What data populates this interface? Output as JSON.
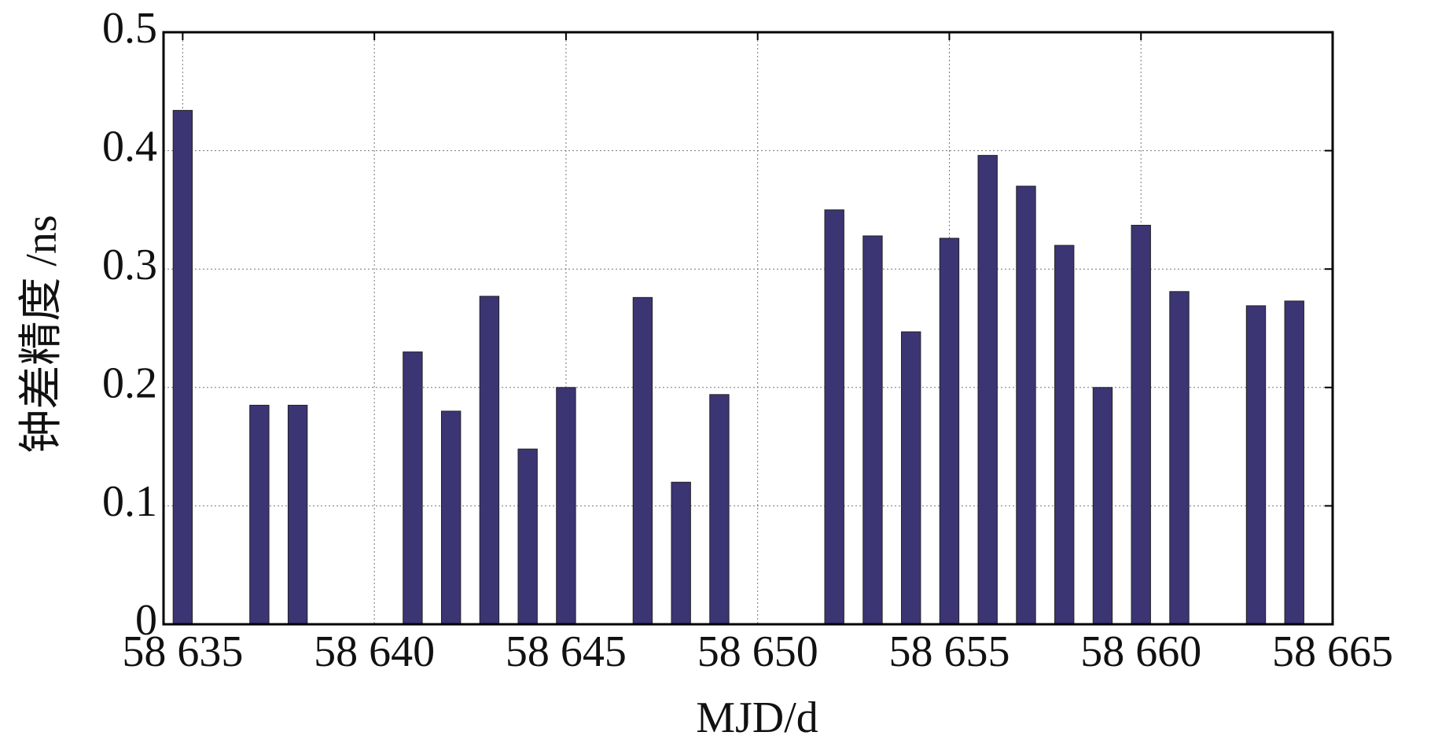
{
  "chart_data": {
    "type": "bar",
    "x_label": "MJD/d",
    "y_label": "钟差精度 /ns",
    "x": [
      58635,
      58637,
      58638,
      58641,
      58642,
      58643,
      58644,
      58645,
      58647,
      58648,
      58649,
      58652,
      58653,
      58654,
      58655,
      58656,
      58657,
      58658,
      58659,
      58660,
      58661,
      58663,
      58664
    ],
    "values": [
      0.434,
      0.185,
      0.185,
      0.23,
      0.18,
      0.277,
      0.148,
      0.2,
      0.276,
      0.12,
      0.194,
      0.35,
      0.328,
      0.247,
      0.326,
      0.396,
      0.37,
      0.32,
      0.2,
      0.337,
      0.281,
      0.269,
      0.273
    ],
    "color": "#3b3574",
    "xlim": [
      58634.5,
      58665
    ],
    "ylim": [
      0,
      0.5
    ],
    "xticks": [
      {
        "value": 58635,
        "label": "58 635"
      },
      {
        "value": 58640,
        "label": "58 640"
      },
      {
        "value": 58645,
        "label": "58 645"
      },
      {
        "value": 58650,
        "label": "58 650"
      },
      {
        "value": 58655,
        "label": "58 655"
      },
      {
        "value": 58660,
        "label": "58 660"
      },
      {
        "value": 58665,
        "label": "58 665"
      }
    ],
    "yticks": [
      0,
      0.1,
      0.2,
      0.3,
      0.4,
      0.5
    ],
    "grid": true
  }
}
